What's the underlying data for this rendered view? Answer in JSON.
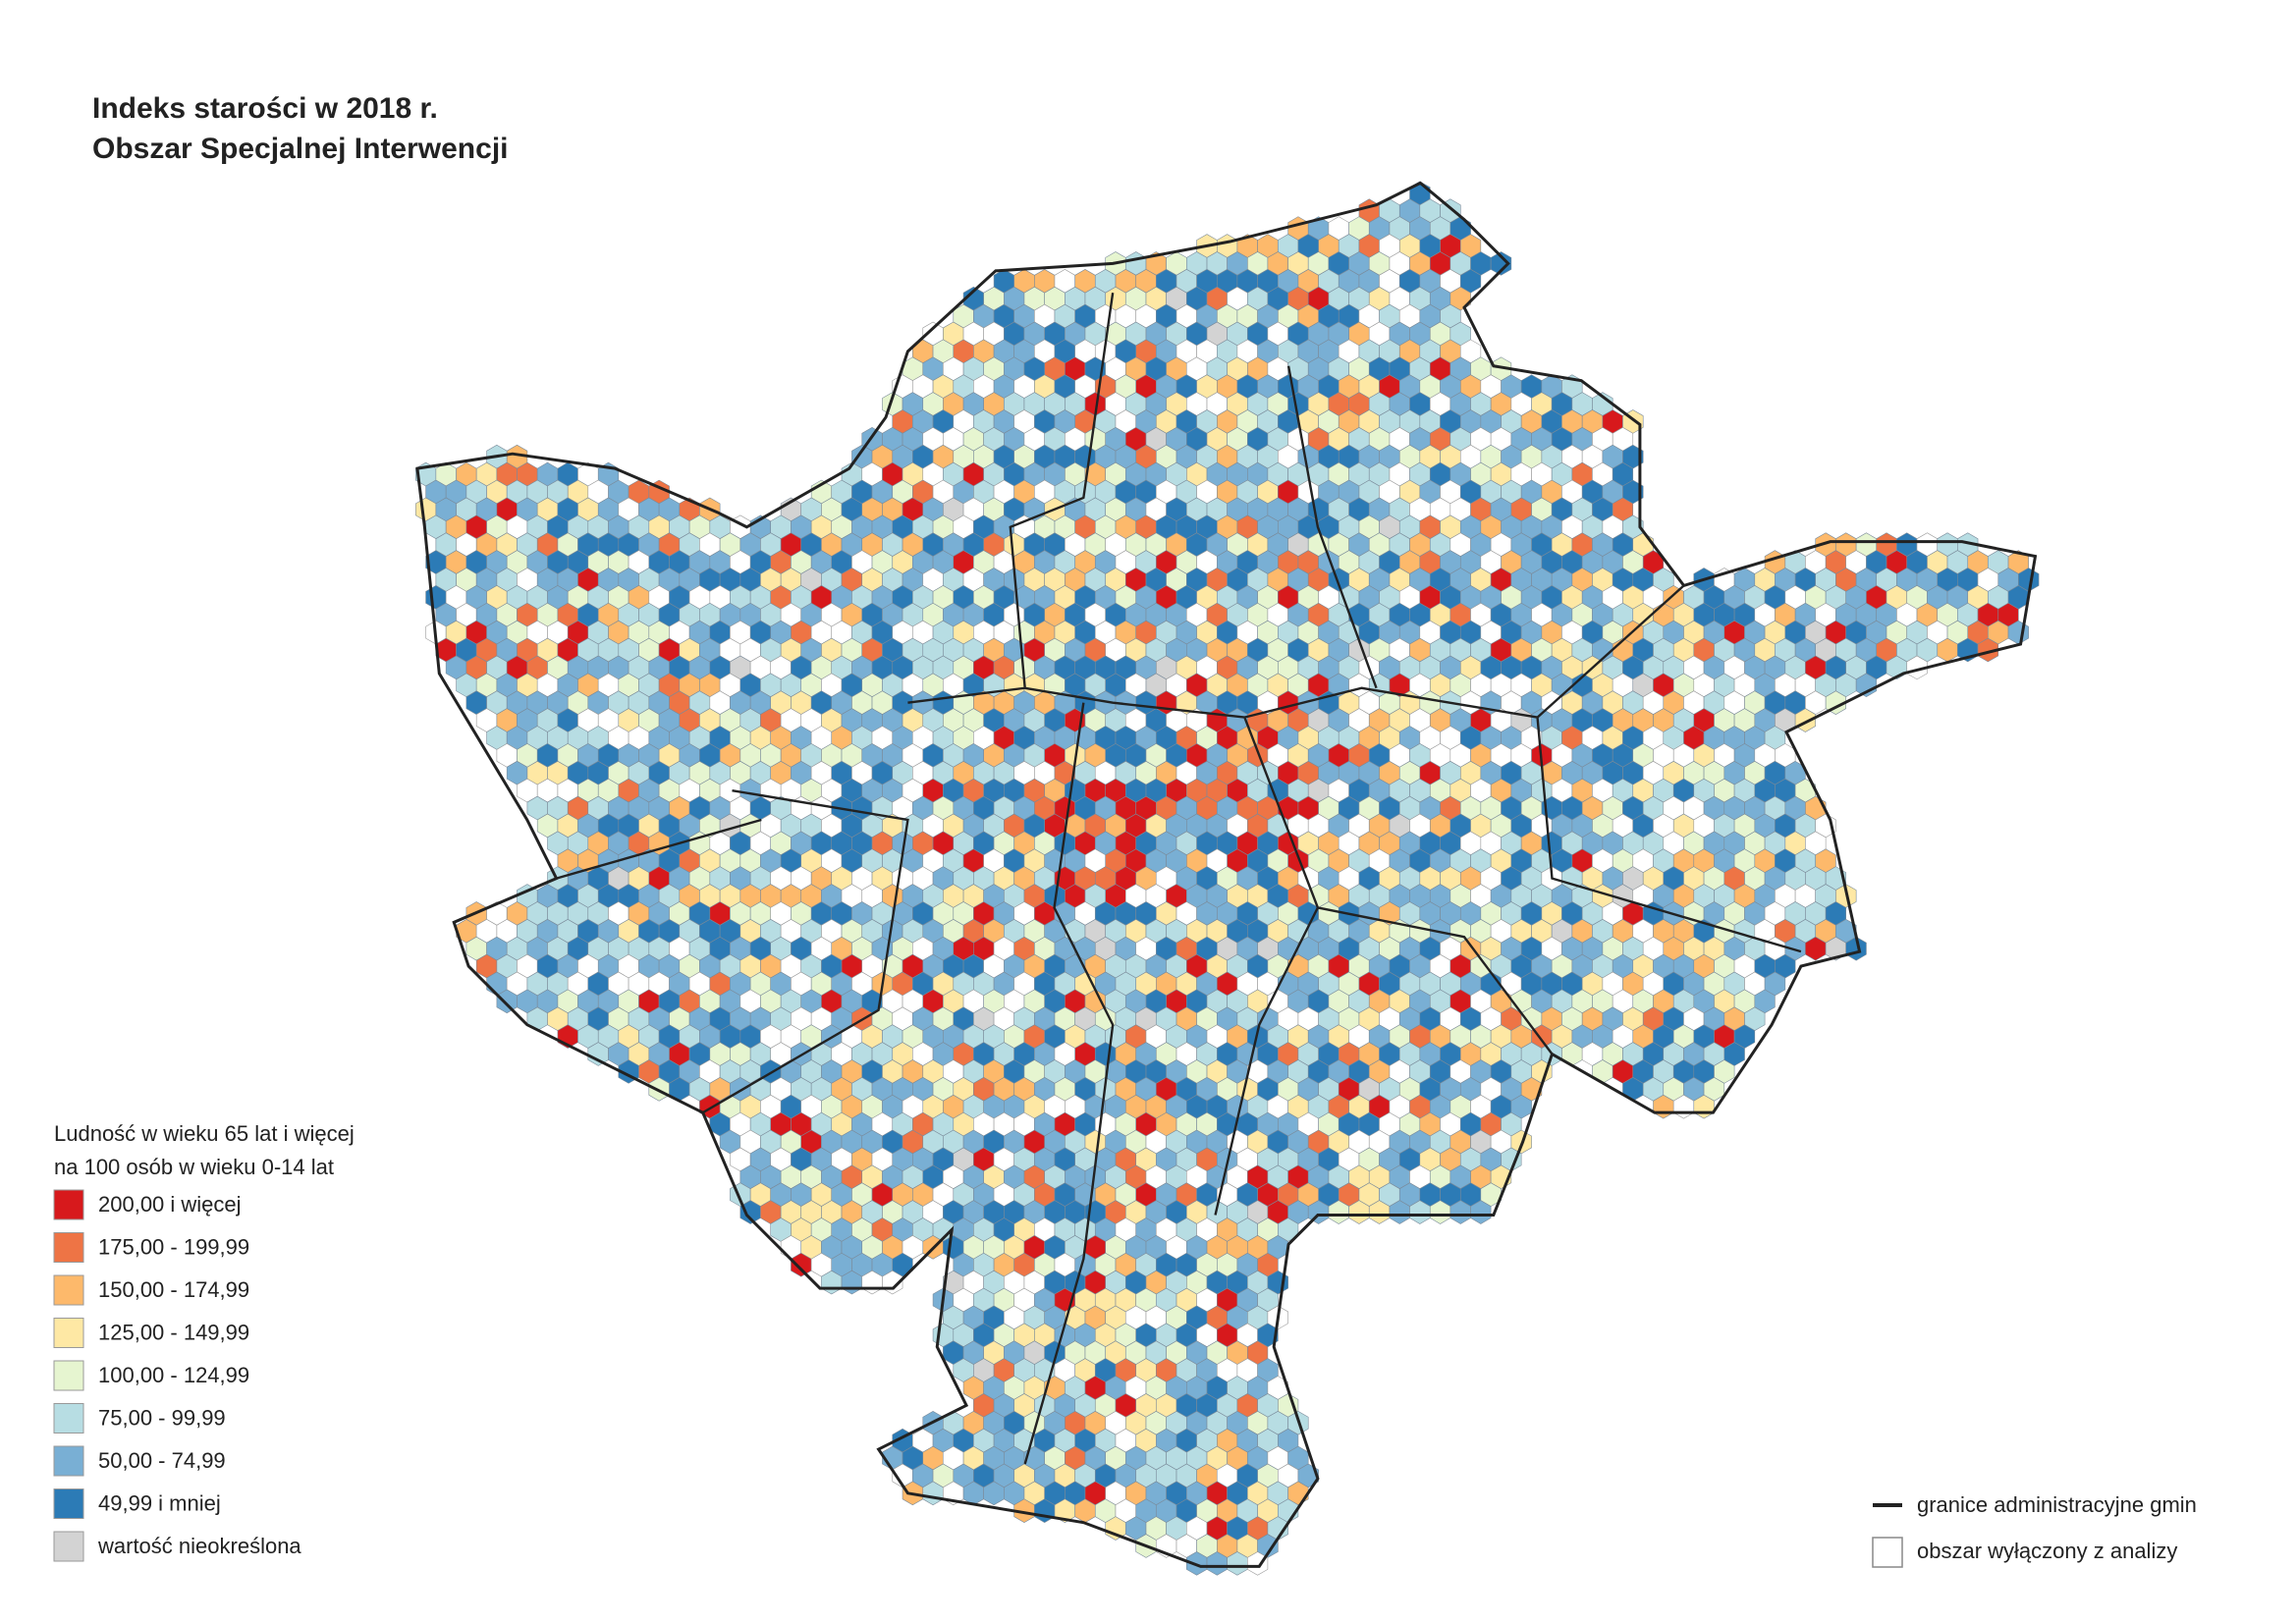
{
  "header": {
    "title_lines": [
      "Indeks starości w 2018 r.",
      "Obszar Specjalnej Interwencji"
    ]
  },
  "legend": {
    "title_lines": [
      "Ludność w wieku 65 lat i więcej",
      "na 100 osób w wieku 0-14 lat"
    ],
    "items": [
      {
        "label": "200,00 i więcej",
        "color": "#d7191c"
      },
      {
        "label": "175,00 - 199,99",
        "color": "#ee7445"
      },
      {
        "label": "150,00 - 174,99",
        "color": "#fdb96b"
      },
      {
        "label": "125,00 - 149,99",
        "color": "#fee8a4"
      },
      {
        "label": "100,00 - 124,99",
        "color": "#e6f5d0"
      },
      {
        "label": "75,00 - 99,99",
        "color": "#b7dde3"
      },
      {
        "label": "50,00 - 74,99",
        "color": "#79afd4"
      },
      {
        "label": "49,99 i mniej",
        "color": "#2c7bb6"
      },
      {
        "label": "wartość nieokreślona",
        "color": "#d3d3d3"
      }
    ],
    "boundary_label": "granice administracyjne gmin",
    "excluded_label": "obszar wyłączony z analizy"
  }
}
